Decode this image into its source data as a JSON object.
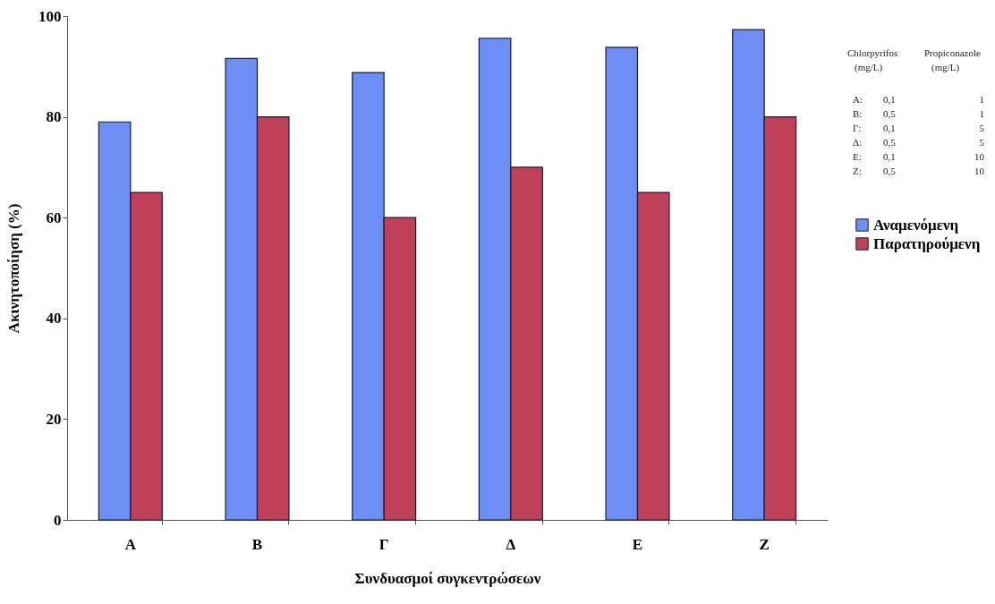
{
  "chart_data": {
    "type": "bar",
    "xlabel": "Συνδυασμοί συγκεντρώσεων",
    "ylabel": "Ακινητοποίηση (%)",
    "categories": [
      "Α",
      "Β",
      "Γ",
      "Δ",
      "Ε",
      "Ζ"
    ],
    "series": [
      {
        "name": "Αναμενόμενη",
        "color": "#6d8ff5",
        "values": [
          79,
          91.6,
          88.8,
          95.6,
          93.8,
          97.3
        ]
      },
      {
        "name": "Παρατηρούμενη",
        "color": "#c0405a",
        "values": [
          65,
          80,
          60,
          70,
          65,
          80
        ]
      }
    ],
    "ylim": [
      0,
      100
    ],
    "yticks": [
      0,
      20,
      40,
      60,
      80,
      100
    ],
    "grid": false,
    "legend": "right",
    "annotations": [
      "Chlorpyrifos\tPropiconazole",
      "(mg/L)\t(mg/L)",
      "Α:\t0,1\t1",
      "Β:\t0,5\t1",
      "Γ:\t0,1\t5",
      "Δ:\t0,5\t5",
      "Ε:\t0,1\t10",
      "Ζ:\t0,5\t10"
    ]
  }
}
